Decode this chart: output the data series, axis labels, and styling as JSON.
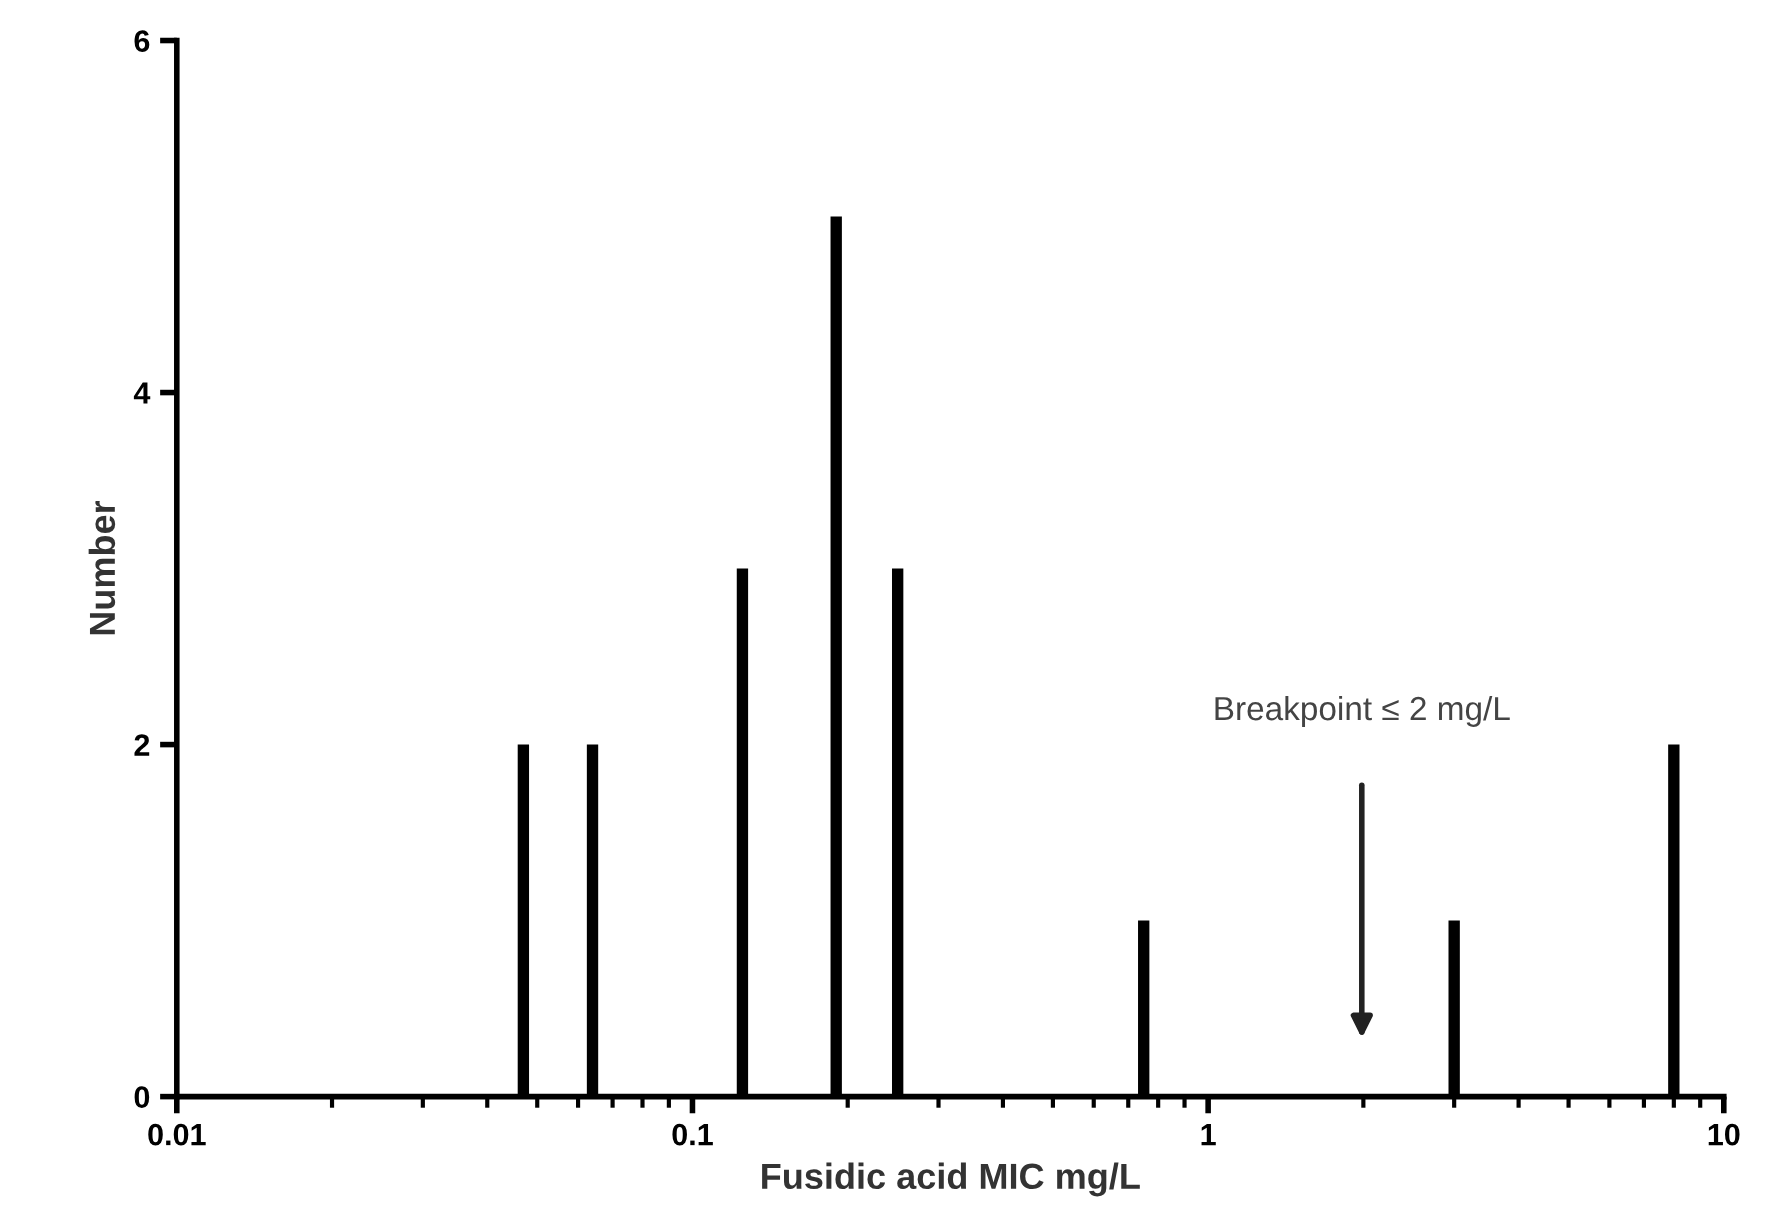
{
  "chart_data": {
    "type": "bar",
    "x": [
      0.047,
      0.064,
      0.125,
      0.19,
      0.25,
      0.75,
      3,
      8
    ],
    "values": [
      2,
      2,
      3,
      5,
      3,
      1,
      1,
      2
    ],
    "color": "#000000",
    "xlabel": "Fusidic acid MIC mg/L",
    "ylabel": "Number",
    "log": "x",
    "xlim": [
      0.01,
      10
    ],
    "xticks": [
      0.01,
      0.1,
      1,
      10
    ],
    "ylim": [
      0,
      6
    ],
    "yticks": [
      0,
      2,
      4,
      6
    ],
    "grid": false,
    "annotations": [
      "Breakpoint ≤ 2 mg/L"
    ]
  }
}
